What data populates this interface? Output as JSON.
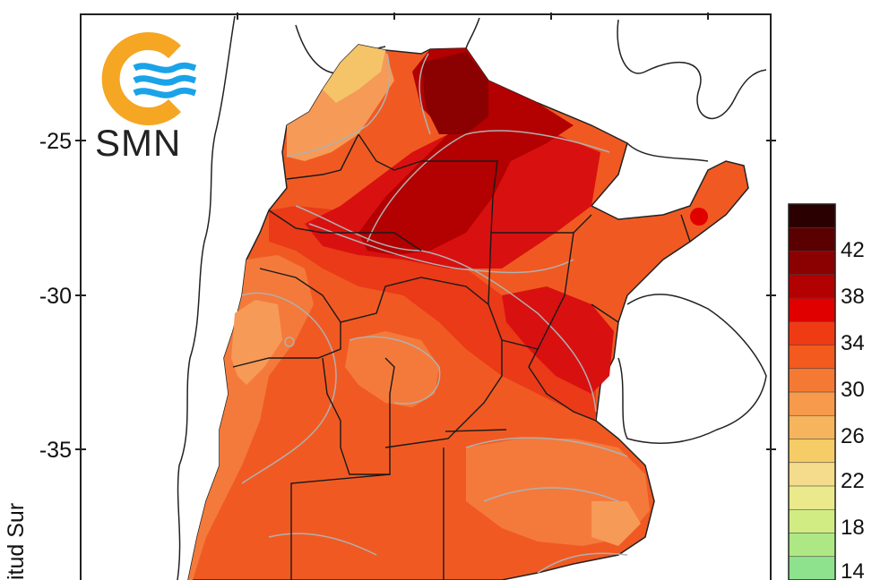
{
  "logo": {
    "text": "SMN",
    "ring_color": "#f5a623",
    "wave_color": "#1aa3e8"
  },
  "axis": {
    "y_title": "itud Sur",
    "y_ticks": [
      "-25",
      "-30",
      "-35"
    ]
  },
  "colorbar": {
    "labels": [
      "42",
      "38",
      "34",
      "30",
      "26",
      "22",
      "18",
      "14"
    ],
    "colors": [
      "#2b0000",
      "#5a0000",
      "#8b0000",
      "#b30000",
      "#e00000",
      "#f03a14",
      "#f25a1e",
      "#f47a34",
      "#f79a4c",
      "#f6b45c",
      "#f5cc66",
      "#f5dc8c",
      "#eaea8c",
      "#d2ec84",
      "#aee884",
      "#8ee28e"
    ]
  },
  "map": {
    "fill_colors": {
      "darkest": "#8b0000",
      "dark": "#b30000",
      "red": "#d91010",
      "red_orange": "#ea3a18",
      "orange": "#f05a22",
      "light_orange": "#f47a3c",
      "pale_orange": "#f69a58",
      "yellowish": "#f5c468"
    }
  }
}
